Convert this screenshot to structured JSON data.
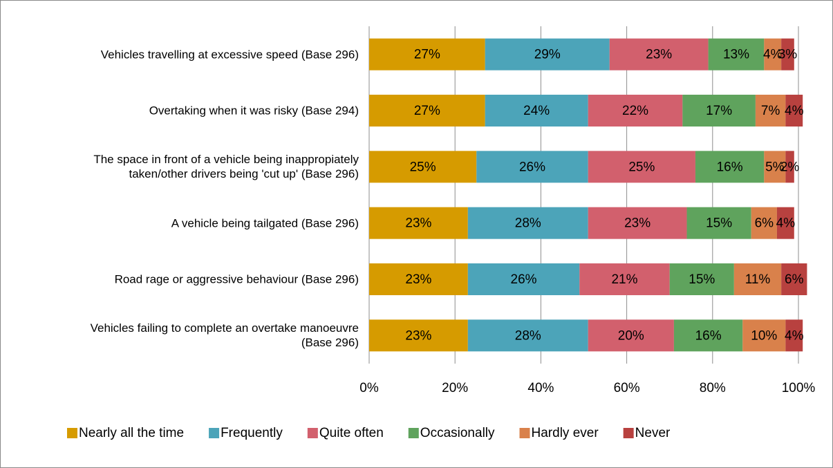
{
  "chart_data": {
    "type": "stacked_barh",
    "categories": [
      "Vehicles travelling at excessive speed (Base 296)",
      "Overtaking when it was risky (Base 294)",
      "The space in front of a vehicle being inappropiately\ntaken/other drivers being 'cut up' (Base 296)",
      "A vehicle being tailgated (Base 296)",
      "Road rage or aggressive behaviour (Base 296)",
      "Vehicles failing to complete an overtake manoeuvre\n(Base 296)"
    ],
    "series": [
      {
        "name": "Nearly all the time",
        "color": "#d69b00",
        "values": [
          27,
          27,
          25,
          23,
          23,
          23
        ],
        "value_labels": [
          "27%",
          "27%",
          "25%",
          "23%",
          "23%",
          "23%"
        ]
      },
      {
        "name": "Frequently",
        "color": "#4ca4b9",
        "values": [
          29,
          24,
          26,
          28,
          26,
          28
        ],
        "value_labels": [
          "29%",
          "24%",
          "26%",
          "28%",
          "26%",
          "28%"
        ]
      },
      {
        "name": "Quite often",
        "color": "#d2606d",
        "values": [
          23,
          22,
          25,
          23,
          21,
          20
        ],
        "value_labels": [
          "23%",
          "22%",
          "25%",
          "23%",
          "21%",
          "20%"
        ]
      },
      {
        "name": "Occasionally",
        "color": "#5fa35d",
        "values": [
          13,
          17,
          16,
          15,
          15,
          16
        ],
        "value_labels": [
          "13%",
          "17%",
          "16%",
          "15%",
          "15%",
          "16%"
        ]
      },
      {
        "name": "Hardly ever",
        "color": "#d9814b",
        "values": [
          4,
          7,
          5,
          6,
          11,
          10
        ],
        "value_labels": [
          "4%",
          "7%",
          "5%",
          "6%",
          "11%",
          "10%"
        ]
      },
      {
        "name": "Never",
        "color": "#b8413f",
        "values": [
          3,
          4,
          2,
          4,
          6,
          4
        ],
        "value_labels": [
          "3%",
          "4%",
          "2%",
          "4%",
          "6%",
          "4%"
        ]
      }
    ],
    "xlim": [
      0,
      100
    ],
    "xticks": [
      {
        "value": 0,
        "label": "0%"
      },
      {
        "value": 20,
        "label": "20%"
      },
      {
        "value": 40,
        "label": "40%"
      },
      {
        "value": 60,
        "label": "60%"
      },
      {
        "value": 80,
        "label": "80%"
      },
      {
        "value": 100,
        "label": "100%"
      }
    ],
    "grid": true,
    "legend": "bottom"
  }
}
